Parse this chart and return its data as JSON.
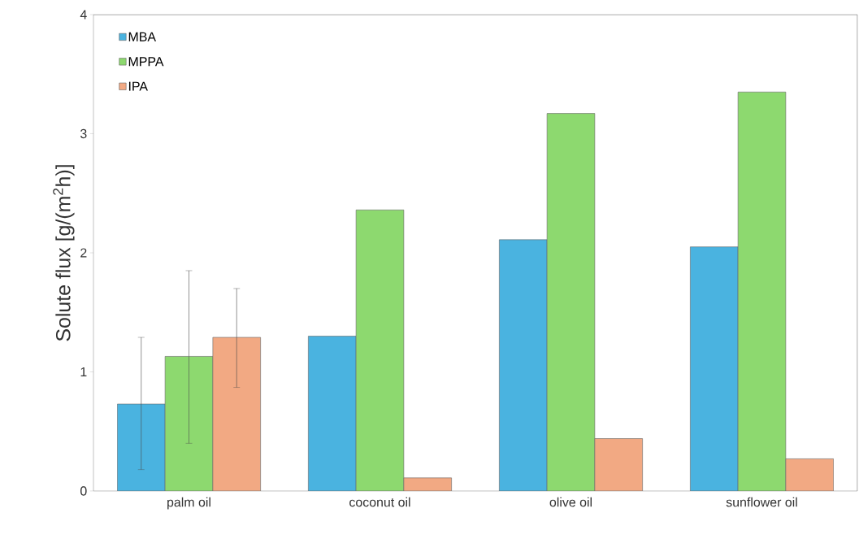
{
  "chart_data": {
    "type": "bar",
    "ylabel": "Solute flux [g/(m$^{2}$h)]",
    "categories": [
      "palm oil",
      "coconut oil",
      "olive oil",
      "sunflower oil"
    ],
    "series": [
      {
        "name": "MBA",
        "color": "#4ab3e0",
        "values": [
          0.73,
          1.3,
          2.11,
          2.05
        ],
        "errors": [
          [
            0.18,
            1.29
          ],
          null,
          null,
          null
        ]
      },
      {
        "name": "MPPA",
        "color": "#8dd96f",
        "values": [
          1.13,
          2.36,
          3.17,
          3.35
        ],
        "errors": [
          [
            0.4,
            1.85
          ],
          null,
          null,
          null
        ]
      },
      {
        "name": "IPA",
        "color": "#f2a983",
        "values": [
          1.29,
          0.11,
          0.44,
          0.27
        ],
        "errors": [
          [
            0.87,
            1.7
          ],
          null,
          null,
          null
        ]
      }
    ],
    "ylim": [
      0,
      4
    ],
    "yticks": [
      0,
      1,
      2,
      3,
      4
    ],
    "legend": "top left"
  }
}
